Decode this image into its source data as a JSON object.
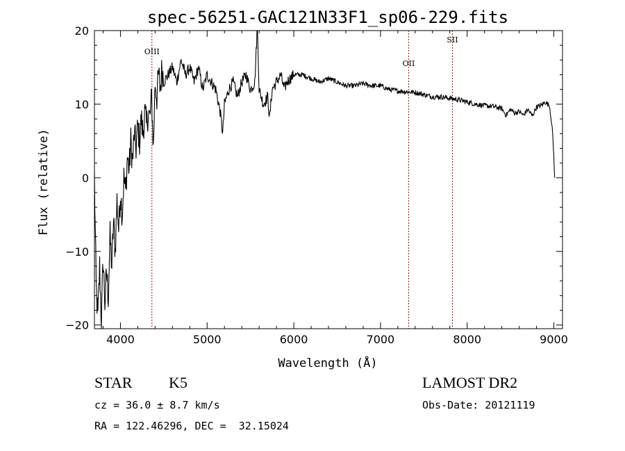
{
  "chart_data": {
    "type": "line",
    "title": "spec-56251-GAC121N33F1_sp06-229.fits",
    "xlabel": "Wavelength (Å)",
    "ylabel": "Flux (relative)",
    "xlim": [
      3700,
      9100
    ],
    "ylim": [
      -20.5,
      20
    ],
    "xticks": [
      4000,
      5000,
      6000,
      7000,
      8000,
      9000
    ],
    "yticks": [
      -20,
      -10,
      0,
      10,
      20
    ],
    "grid": false,
    "line_color": "#000000",
    "marker_color": "#8b1a1a",
    "emission_lines": [
      {
        "label": "OIII",
        "wavelength": 4363
      },
      {
        "label": "OII",
        "wavelength": 7325
      },
      {
        "label": "SII",
        "wavelength": 7830
      }
    ],
    "series": [
      {
        "x": [
          3700,
          3720,
          3740,
          3760,
          3780,
          3800,
          3820,
          3840,
          3860,
          3880,
          3900,
          3920,
          3940,
          3960,
          3980,
          4000,
          4020,
          4040,
          4060,
          4080,
          4100,
          4120,
          4140,
          4160,
          4180,
          4200,
          4220,
          4240,
          4260,
          4280,
          4300,
          4320,
          4340,
          4360,
          4380,
          4400,
          4420,
          4440,
          4460,
          4480,
          4500,
          4550,
          4600,
          4650,
          4700,
          4750,
          4800,
          4850,
          4900,
          4950,
          5000,
          5050,
          5100,
          5150,
          5180,
          5200,
          5250,
          5300,
          5350,
          5400,
          5450,
          5500,
          5550,
          5580,
          5600,
          5650,
          5700,
          5720,
          5750,
          5800,
          5850,
          5890,
          5920,
          6000,
          6100,
          6200,
          6300,
          6400,
          6500,
          6600,
          6700,
          6800,
          6900,
          7000,
          7100,
          7200,
          7300,
          7400,
          7500,
          7600,
          7700,
          7800,
          7900,
          8000,
          8100,
          8200,
          8300,
          8400,
          8450,
          8500,
          8550,
          8600,
          8650,
          8700,
          8750,
          8800,
          8850,
          8900,
          8950,
          8980,
          9000,
          9010
        ],
        "y": [
          0,
          -15,
          -19,
          -12,
          -20,
          -11,
          -17,
          -13,
          -16,
          -8,
          -12,
          -6,
          -10,
          -3,
          -7,
          -2,
          -5,
          0,
          -2,
          3,
          1,
          5,
          2,
          6,
          4,
          7,
          5,
          8,
          6,
          9,
          7,
          9,
          8,
          11,
          4,
          13,
          11,
          14,
          12,
          15,
          13,
          14,
          15,
          13,
          16,
          14,
          15,
          13,
          15,
          12,
          14,
          13,
          12,
          9,
          6,
          10,
          12,
          13,
          11,
          13,
          14,
          12,
          13,
          21,
          12,
          10,
          11,
          8,
          12,
          13,
          14,
          12,
          13,
          14,
          14,
          13.5,
          13,
          13.5,
          13,
          12.5,
          12.5,
          12.8,
          12.5,
          12.5,
          12,
          11.8,
          11.7,
          11.6,
          11.3,
          11,
          11,
          10.8,
          10.6,
          10.3,
          10,
          9.8,
          9.7,
          9.4,
          8.5,
          9.3,
          8.8,
          9,
          8.5,
          9.3,
          8.4,
          9.6,
          9.8,
          10.3,
          9.8,
          7,
          3,
          0
        ]
      }
    ]
  },
  "info": {
    "object_type": "STAR",
    "subclass": "K5",
    "survey": "LAMOST DR2",
    "redshift": "cz = 36.0 ± 8.7 km/s",
    "obs_date": "Obs-Date: 20121119",
    "coords": "RA = 122.46296, DEC =  32.15024"
  }
}
